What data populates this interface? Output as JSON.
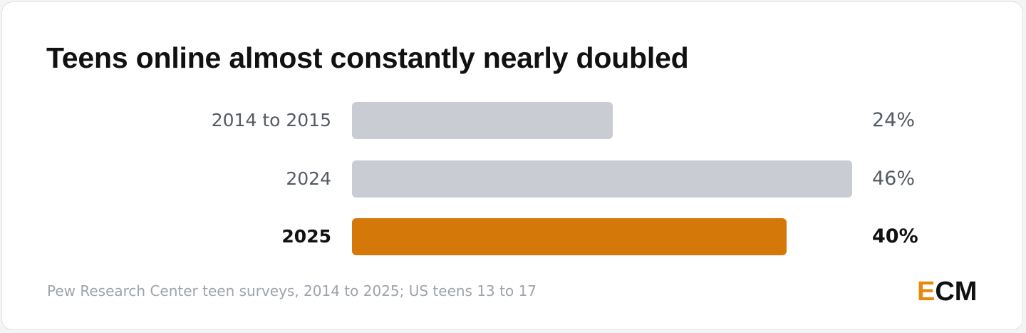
{
  "chart_data": {
    "type": "bar",
    "orientation": "horizontal",
    "title": "Teens online almost constantly nearly doubled",
    "categories": [
      "2014 to 2015",
      "2024",
      "2025"
    ],
    "values": [
      24,
      46,
      40
    ],
    "value_labels": [
      "24%",
      "46%",
      "40%"
    ],
    "highlight_index": 2,
    "xlim": [
      0,
      46
    ],
    "grid": false,
    "colors": {
      "default": "#c9ccd3",
      "highlight": "#d4780a"
    }
  },
  "source": "Pew Research Center teen surveys, 2014 to 2025; US teens 13 to 17",
  "logo": {
    "first": "E",
    "rest": "CM",
    "accent_color": "#e58a0f"
  }
}
